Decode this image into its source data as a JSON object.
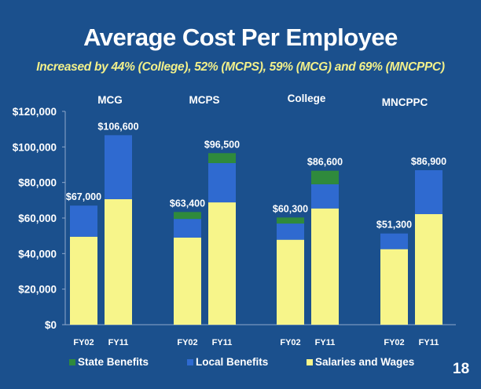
{
  "slide": {
    "title": "Average Cost Per Employee",
    "subtitle": "Increased by 44% (College), 52% (MCPS), 59% (MCG) and 69% (MNCPPC)",
    "page_number": "18"
  },
  "colors": {
    "background": "#1b508d",
    "salaries": "#f7f58a",
    "local": "#2f6ad0",
    "state": "#2f8a3c",
    "text": "#ffffff"
  },
  "chart_data": {
    "type": "bar",
    "stacked": true,
    "title": "Average Cost Per Employee",
    "ylabel": "",
    "xlabel": "",
    "ylim": [
      0,
      120000
    ],
    "yticks": [
      0,
      20000,
      40000,
      60000,
      80000,
      100000,
      120000
    ],
    "ytick_labels": [
      "$0",
      "$20,000",
      "$40,000",
      "$60,000",
      "$80,000",
      "$100,000",
      "$120,000"
    ],
    "groups": [
      "MCG",
      "MCPS",
      "College",
      "MNCPPC"
    ],
    "categories": [
      "FY02",
      "FY11",
      "FY02",
      "FY11",
      "FY02",
      "FY11",
      "FY02",
      "FY11"
    ],
    "series": [
      {
        "name": "Salaries and Wages",
        "values": [
          49500,
          70600,
          49000,
          68800,
          47800,
          65400,
          42500,
          62200
        ]
      },
      {
        "name": "Local Benefits",
        "values": [
          17500,
          36000,
          10500,
          22100,
          9100,
          13600,
          8800,
          24700
        ]
      },
      {
        "name": "State Benefits",
        "values": [
          0,
          0,
          3900,
          5600,
          3400,
          7600,
          0,
          0
        ]
      }
    ],
    "totals": [
      67000,
      106600,
      63400,
      96500,
      60300,
      86600,
      51300,
      86900
    ],
    "total_labels": [
      "$67,000",
      "$106,600",
      "$63,400",
      "$96,500",
      "$60,300",
      "$86,600",
      "$51,300",
      "$86,900"
    ],
    "legend": [
      "State Benefits",
      "Local Benefits",
      "Salaries and Wages"
    ],
    "legend_position": "bottom",
    "grid": false
  }
}
